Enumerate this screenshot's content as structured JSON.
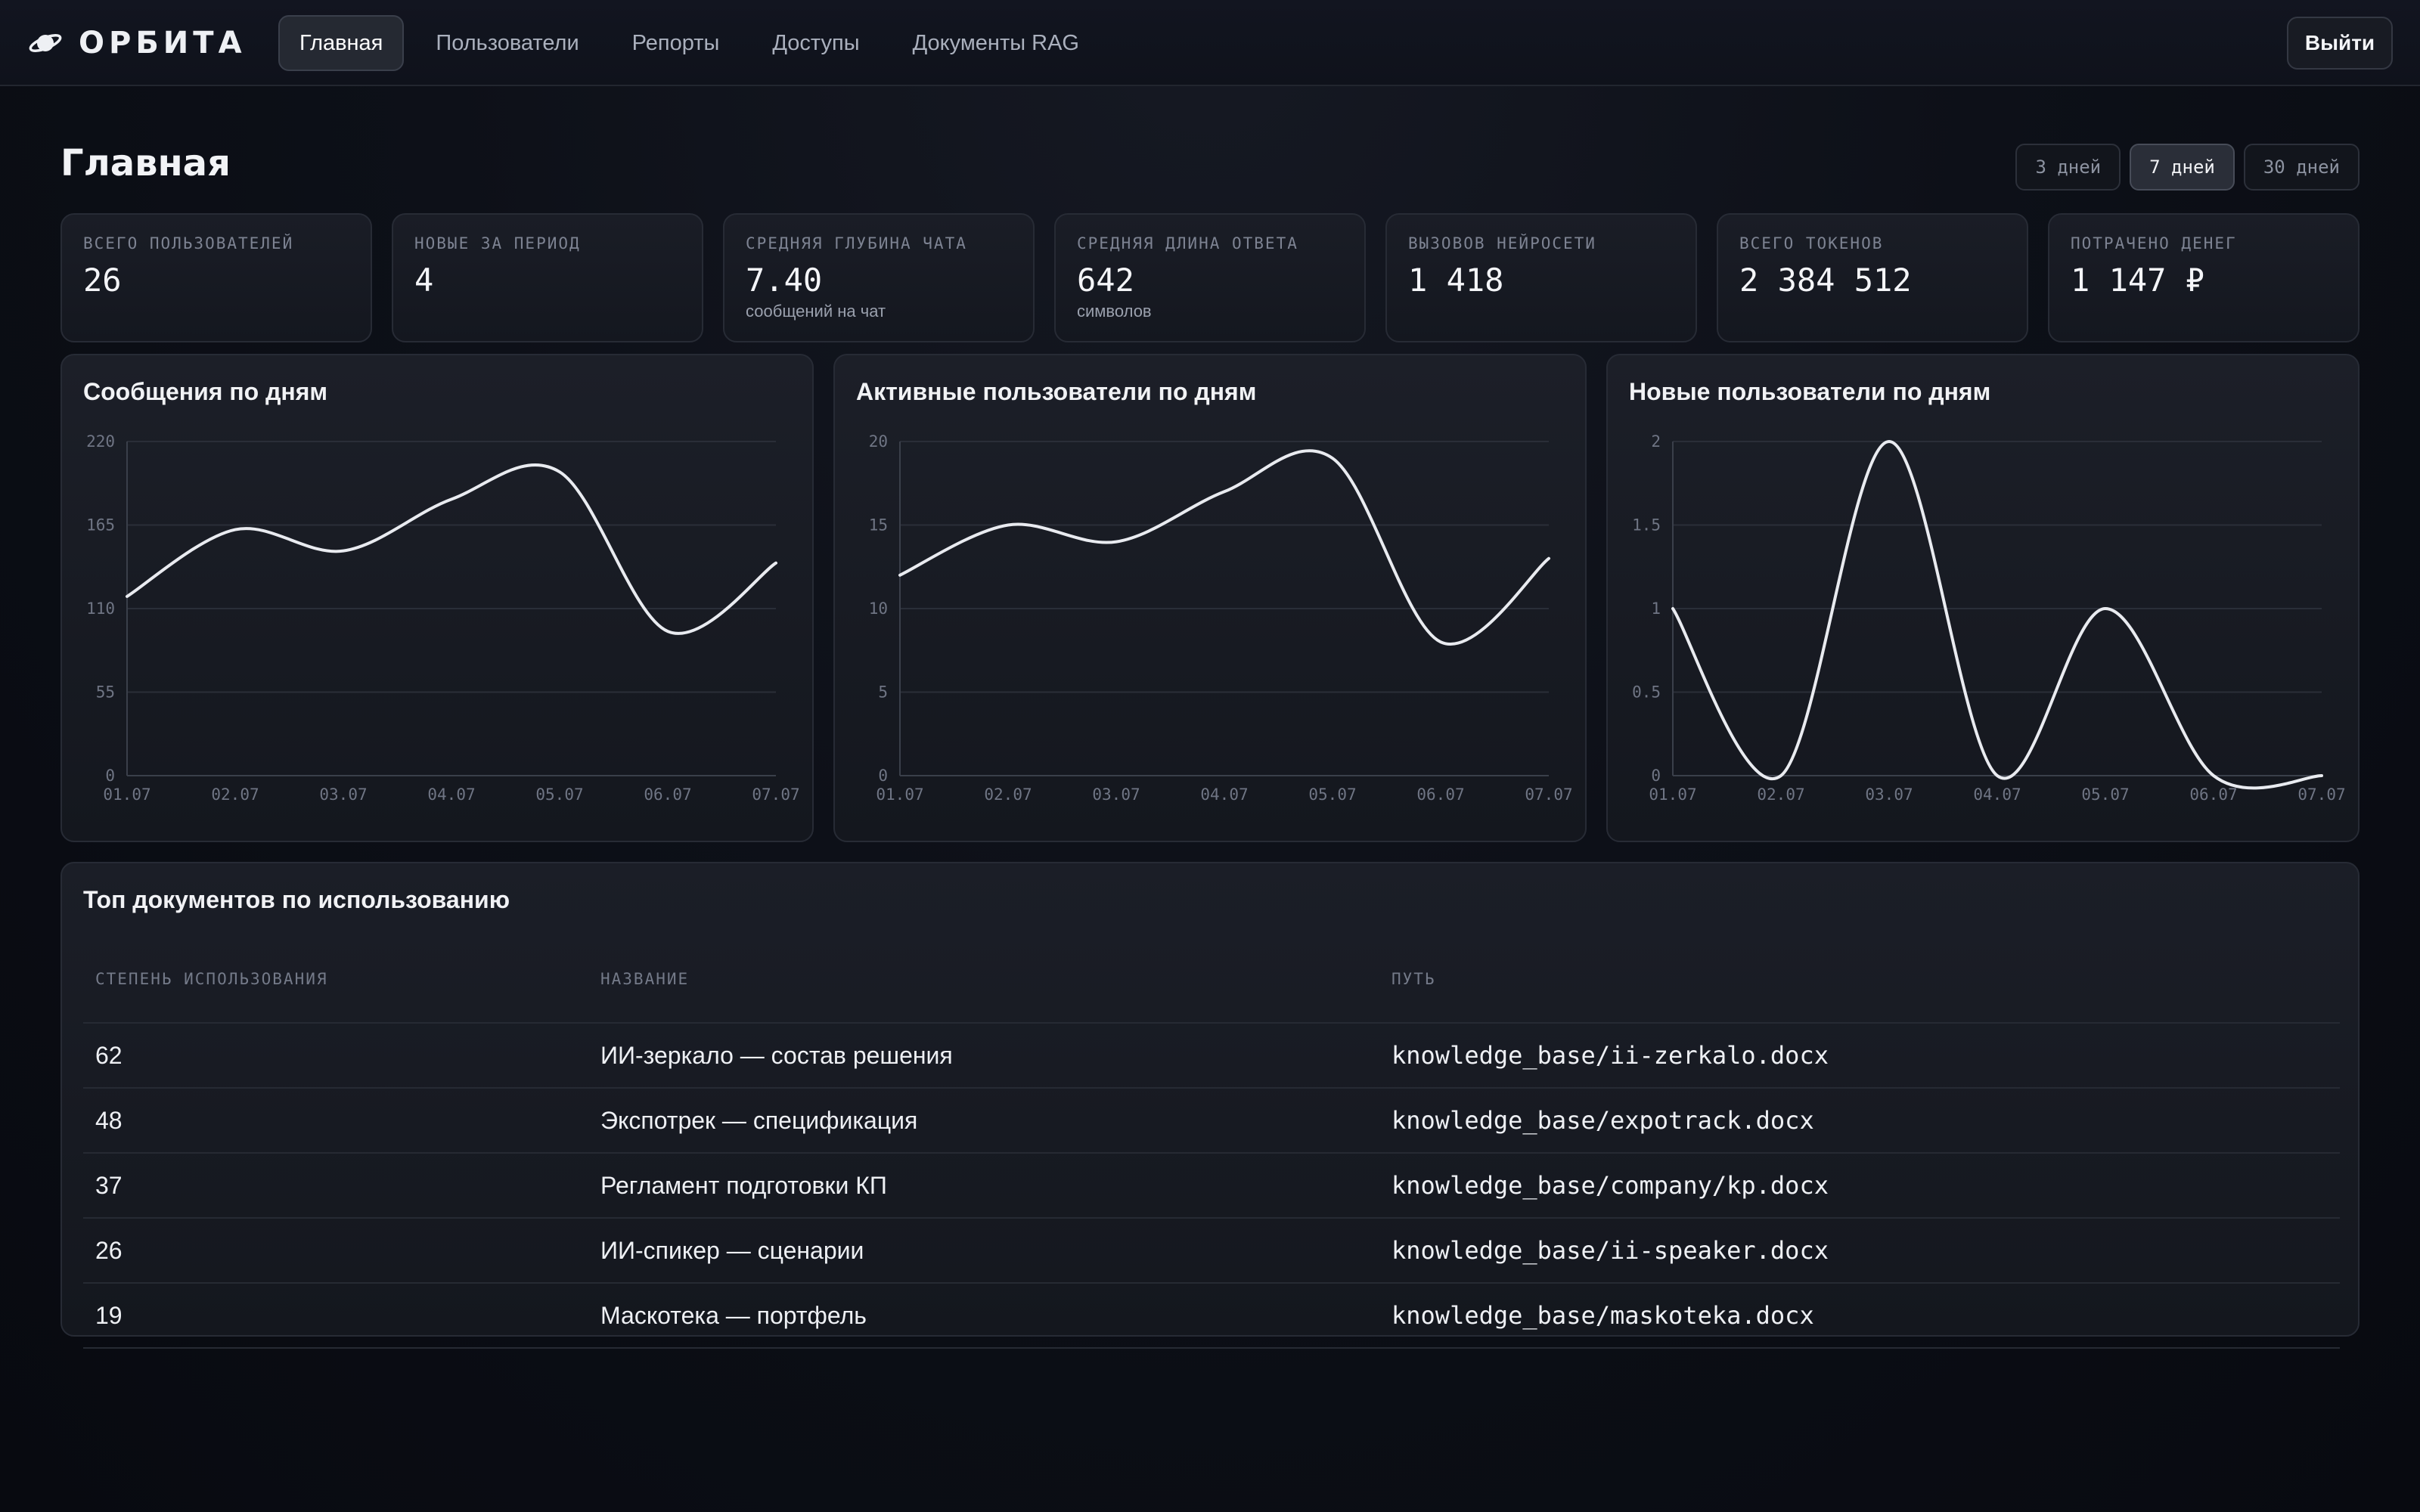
{
  "app": {
    "name": "ОРБИТА",
    "logo_icon": "planet-icon"
  },
  "nav": {
    "items": [
      {
        "label": "Главная",
        "active": true
      },
      {
        "label": "Пользователи",
        "active": false
      },
      {
        "label": "Репорты",
        "active": false
      },
      {
        "label": "Доступы",
        "active": false
      },
      {
        "label": "Документы RAG",
        "active": false
      }
    ],
    "logout_label": "Выйти"
  },
  "page": {
    "title": "Главная",
    "ranges": [
      {
        "label": "3 дней",
        "active": false
      },
      {
        "label": "7 дней",
        "active": true
      },
      {
        "label": "30 дней",
        "active": false
      }
    ]
  },
  "kpis": [
    {
      "label": "Всего пользователей",
      "value": "26",
      "sub": ""
    },
    {
      "label": "Новые за период",
      "value": "4",
      "sub": ""
    },
    {
      "label": "Средняя глубина чата",
      "value": "7.40",
      "sub": "сообщений на чат"
    },
    {
      "label": "Средняя длина ответа",
      "value": "642",
      "sub": "символов"
    },
    {
      "label": "Вызовов нейросети",
      "value": "1 418",
      "sub": ""
    },
    {
      "label": "Всего токенов",
      "value": "2 384 512",
      "sub": ""
    },
    {
      "label": "Потрачено денег",
      "value": "1 147 ₽",
      "sub": ""
    }
  ],
  "chart_data": [
    {
      "type": "line",
      "title": "Сообщения по дням",
      "categories": [
        "01.07",
        "02.07",
        "03.07",
        "04.07",
        "05.07",
        "06.07",
        "07.07"
      ],
      "series": [
        {
          "values": [
            118,
            162,
            148,
            182,
            200,
            95,
            140
          ]
        }
      ],
      "ylim": [
        0,
        220
      ],
      "yticks": [
        "0",
        "55",
        "110",
        "165",
        "220"
      ],
      "grid": true,
      "line_color": "#e9ebf0"
    },
    {
      "type": "line",
      "title": "Активные пользователи по дням",
      "categories": [
        "01.07",
        "02.07",
        "03.07",
        "04.07",
        "05.07",
        "06.07",
        "07.07"
      ],
      "series": [
        {
          "values": [
            12,
            15,
            14,
            17,
            19,
            8,
            13
          ]
        }
      ],
      "ylim": [
        0,
        20
      ],
      "yticks": [
        "0",
        "5",
        "10",
        "15",
        "20"
      ],
      "grid": true,
      "line_color": "#e9ebf0"
    },
    {
      "type": "line",
      "title": "Новые пользователи по дням",
      "categories": [
        "01.07",
        "02.07",
        "03.07",
        "04.07",
        "05.07",
        "06.07",
        "07.07"
      ],
      "series": [
        {
          "values": [
            1,
            0,
            2,
            0,
            1,
            0,
            0
          ]
        }
      ],
      "ylim": [
        0,
        2
      ],
      "yticks": [
        "0",
        "0.5",
        "1",
        "1.5",
        "2"
      ],
      "grid": true,
      "line_color": "#e9ebf0"
    }
  ],
  "top_docs": {
    "title": "Топ документов по использованию",
    "columns": [
      "Степень использования",
      "Название",
      "Путь"
    ],
    "rows": [
      {
        "usage": "62",
        "name": "ИИ-зеркало — состав решения",
        "path": "knowledge_base/ii-zerkalo.docx"
      },
      {
        "usage": "48",
        "name": "Экспотрек — спецификация",
        "path": "knowledge_base/expotrack.docx"
      },
      {
        "usage": "37",
        "name": "Регламент подготовки КП",
        "path": "knowledge_base/company/kp.docx"
      },
      {
        "usage": "26",
        "name": "ИИ-спикер — сценарии",
        "path": "knowledge_base/ii-speaker.docx"
      },
      {
        "usage": "19",
        "name": "Маскотека — портфель",
        "path": "knowledge_base/maskoteka.docx"
      }
    ]
  }
}
